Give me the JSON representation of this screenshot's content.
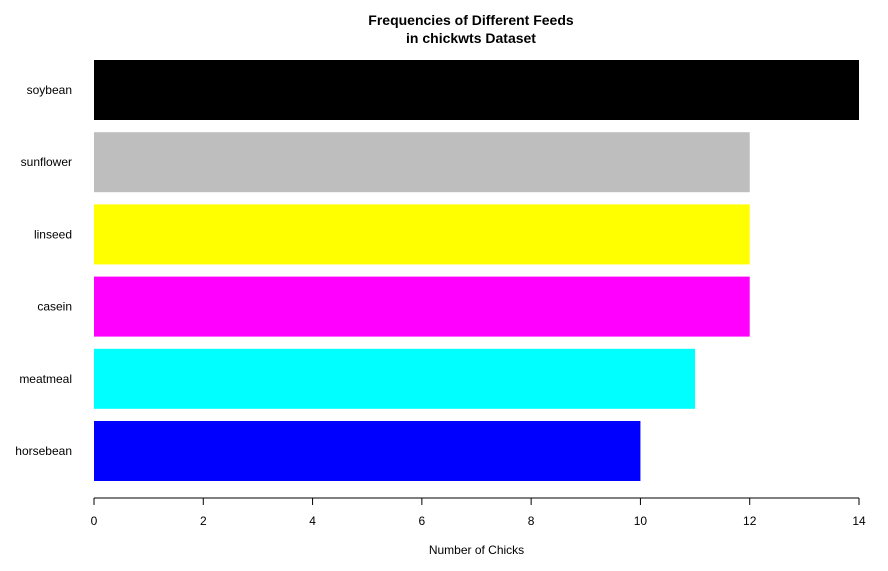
{
  "chart_data": {
    "type": "bar",
    "orientation": "horizontal",
    "title_line1": "Frequencies of Different Feeds",
    "title_line2": "in chickwts Dataset",
    "xlabel": "Number of Chicks",
    "ylabel": "",
    "categories": [
      "soybean",
      "sunflower",
      "linseed",
      "casein",
      "meatmeal",
      "horsebean"
    ],
    "values": [
      14,
      12,
      12,
      12,
      11,
      10
    ],
    "colors": [
      "#000000",
      "#bebebe",
      "#ffff00",
      "#ff00ff",
      "#00ffff",
      "#0000ff"
    ],
    "xlim": [
      0,
      14
    ],
    "xticks": [
      0,
      2,
      4,
      6,
      8,
      10,
      12,
      14
    ],
    "grid": false,
    "legend": "none"
  }
}
